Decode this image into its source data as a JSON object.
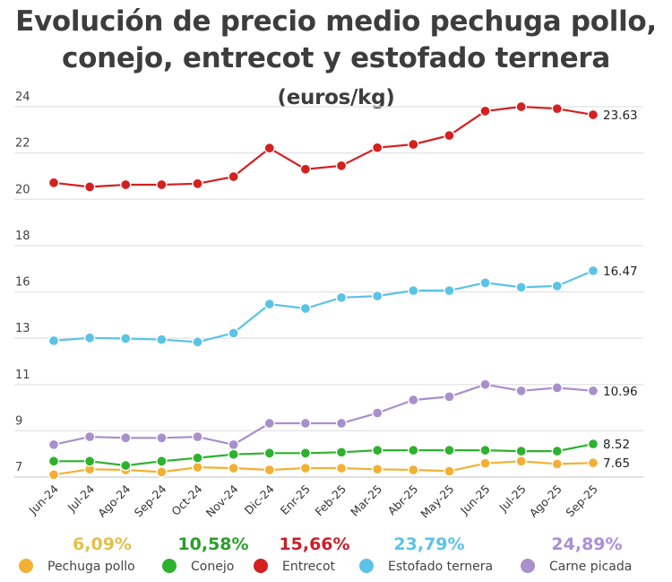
{
  "chart_data": {
    "type": "line",
    "title": "Evolución de precio medio pechuga pollo, conejo, entrecot y estofado ternera",
    "title_unit": "(euros/kg)",
    "categories": [
      "Jun-24",
      "Jul-24",
      "Ago-24",
      "Sep-24",
      "Oct-24",
      "Nov-24",
      "Dic-24",
      "Enr-25",
      "Feb-25",
      "Mar-25",
      "Abr-25",
      "May-25",
      "Jun-25",
      "Jul-25",
      "Ago-25",
      "Sep-25"
    ],
    "ylim": [
      7,
      24
    ],
    "y_ticks": [
      {
        "value": 7,
        "label": "7"
      },
      {
        "value": 9.125,
        "label": "9"
      },
      {
        "value": 11.25,
        "label": "11"
      },
      {
        "value": 13.375,
        "label": "13"
      },
      {
        "value": 15.5,
        "label": "16"
      },
      {
        "value": 17.625,
        "label": "18"
      },
      {
        "value": 19.75,
        "label": "20"
      },
      {
        "value": 21.875,
        "label": "22"
      },
      {
        "value": 24,
        "label": "24"
      }
    ],
    "grid": true,
    "legend_placement": "bottom",
    "series": [
      {
        "name": "Pechuga pollo",
        "color": "#f2b134",
        "change": "6,09%",
        "change_color": "#e2c04c",
        "end_label": "7.65",
        "values": [
          7.11,
          7.36,
          7.33,
          7.23,
          7.45,
          7.41,
          7.33,
          7.41,
          7.41,
          7.36,
          7.33,
          7.27,
          7.63,
          7.73,
          7.6,
          7.65
        ]
      },
      {
        "name": "Conejo",
        "color": "#2eb22e",
        "change": "10,58%",
        "change_color": "#2a9e2a",
        "end_label": "8.52",
        "values": [
          7.73,
          7.73,
          7.53,
          7.73,
          7.88,
          8.04,
          8.1,
          8.1,
          8.14,
          8.23,
          8.23,
          8.23,
          8.23,
          8.19,
          8.19,
          8.52
        ]
      },
      {
        "name": "Entrecot",
        "color": "#d4201f",
        "change": "15,66%",
        "change_color": "#c8202a",
        "end_label": "23.63",
        "values": [
          20.51,
          20.32,
          20.42,
          20.42,
          20.47,
          20.79,
          22.1,
          21.13,
          21.29,
          22.12,
          22.27,
          22.68,
          23.8,
          24.0,
          23.91,
          23.63
        ]
      },
      {
        "name": "Estofado ternera",
        "color": "#5bc3e6",
        "change": "23,79%",
        "change_color": "#5bc3e6",
        "end_label": "16.47",
        "values": [
          13.26,
          13.39,
          13.36,
          13.31,
          13.2,
          13.61,
          14.94,
          14.74,
          15.24,
          15.31,
          15.56,
          15.56,
          15.92,
          15.71,
          15.77,
          16.47
        ]
      },
      {
        "name": "Carne picada",
        "color": "#a98fcc",
        "change": "24,89%",
        "change_color": "#a98fd6",
        "end_label": "10.96",
        "values": [
          8.49,
          8.85,
          8.8,
          8.8,
          8.85,
          8.49,
          9.47,
          9.47,
          9.47,
          9.94,
          10.54,
          10.69,
          11.25,
          10.96,
          11.1,
          10.96
        ]
      }
    ]
  }
}
